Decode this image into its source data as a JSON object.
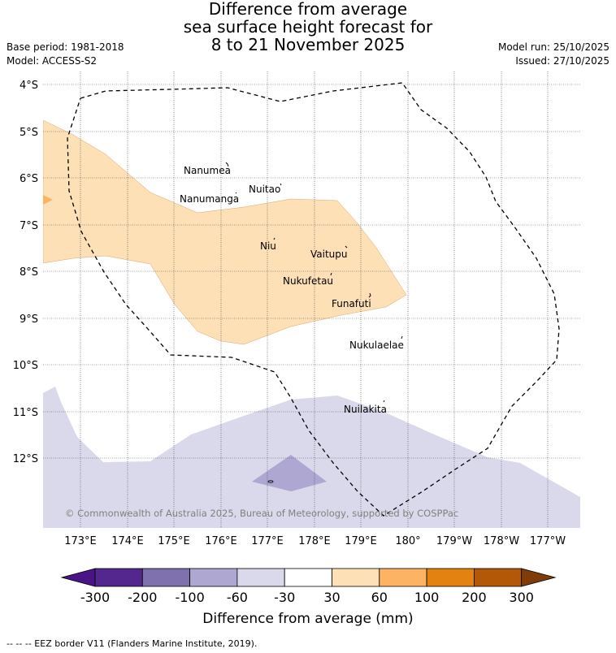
{
  "title": {
    "line1": "Difference from average",
    "line2": "sea surface height forecast for",
    "line3": "8 to 21 November 2025"
  },
  "meta": {
    "base_period": "Base period: 1981-2018",
    "model": "Model: ACCESS-S2",
    "model_run": "Model run: 25/10/2025",
    "issued": "Issued: 27/10/2025"
  },
  "map": {
    "lat_labels": [
      "4°S",
      "5°S",
      "6°S",
      "7°S",
      "8°S",
      "9°S",
      "10°S",
      "11°S",
      "12°S"
    ],
    "lon_labels": [
      "173°E",
      "174°E",
      "175°E",
      "176°E",
      "177°E",
      "178°E",
      "179°E",
      "180°",
      "179°W",
      "178°W",
      "177°W"
    ],
    "islands": [
      "Nanumea",
      "Nuitao",
      "Nanumanga",
      "Niu",
      "Vaitupu",
      "Nukufetau",
      "Funafuti",
      "Nukulaelae",
      "Nuilakita"
    ],
    "copyright": "© Commonwealth of Australia 2025, Bureau of Meteorology, supported by COSPPac",
    "fill_colors": {
      "pos_30_60": "#fde0b6",
      "pos_60_100": "#fdb462",
      "neg_60_30": "#d9d9eb",
      "neg_100_60": "#ada7d2"
    }
  },
  "colorbar": {
    "tick_labels": [
      "-300",
      "-200",
      "-100",
      "-60",
      "-30",
      "30",
      "60",
      "100",
      "200",
      "300"
    ],
    "colors": [
      "#4a1486",
      "#54278f",
      "#7e71ad",
      "#ada7d2",
      "#d9d9eb",
      "#ffffff",
      "#fde0b6",
      "#fdb462",
      "#e3820f",
      "#b35806",
      "#7f3b08"
    ],
    "label": "Difference from average (mm)"
  },
  "footnote": "-- -- -- EEZ border V11 (Flanders Marine Institute, 2019)."
}
